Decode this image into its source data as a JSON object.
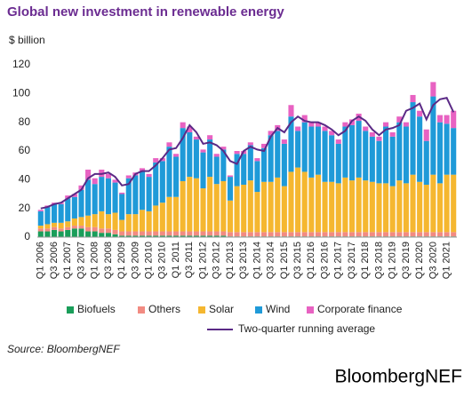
{
  "chart_data": {
    "type": "stacked-bar-line",
    "title": "Global new investment in renewable energy",
    "ylabel": "$ billion",
    "source": "Source: BloombergNEF",
    "brand": "BloombergNEF",
    "ylim": [
      0,
      120
    ],
    "yticks": [
      0,
      20,
      40,
      60,
      80,
      100,
      120
    ],
    "grid": false,
    "legend": "bottom",
    "categories": [
      "Q1 2006",
      null,
      "Q3 2006",
      null,
      "Q1 2007",
      null,
      "Q3 2007",
      null,
      "Q1 2008",
      null,
      "Q3 2008",
      null,
      "Q1 2009",
      null,
      "Q3 2009",
      null,
      "Q1 2010",
      null,
      "Q3 2010",
      null,
      "Q1 2011",
      null,
      "Q3 2011",
      null,
      "Q1 2012",
      null,
      "Q3 2012",
      null,
      "Q1 2013",
      null,
      "Q3 2013",
      null,
      "Q1 2014",
      null,
      "Q3 2014",
      null,
      "Q1 2015",
      null,
      "Q3 2015",
      null,
      "Q1 2016",
      null,
      "Q3 2016",
      null,
      "Q1 2017",
      null,
      "Q3 2017",
      null,
      "Q1 2018",
      null,
      "Q3 2018",
      null,
      "Q1 2019",
      null,
      "Q3 2019",
      null,
      "Q1 2020",
      null,
      "Q3 2020",
      null,
      "Q1 2021",
      null
    ],
    "series": [
      {
        "name": "Biofuels",
        "color": "#1a9e5a",
        "values": [
          4,
          4,
          5,
          4,
          5,
          6,
          6,
          4,
          4,
          3,
          3,
          2,
          1,
          1,
          1,
          1,
          1,
          1,
          1,
          1,
          1,
          1,
          1,
          1,
          1,
          1,
          1,
          1,
          0.5,
          0.5,
          0.5,
          0.5,
          0.5,
          0.5,
          0.5,
          0.5,
          0.5,
          0.5,
          0.5,
          0.5,
          0.5,
          0.5,
          0.5,
          0.5,
          0.5,
          0.5,
          0.5,
          0.5,
          0.5,
          0.5,
          0.5,
          0.5,
          0.5,
          0.5,
          0.5,
          0.5,
          0.5,
          0.5,
          0.5,
          0.5,
          0.5,
          0.5
        ]
      },
      {
        "name": "Others",
        "color": "#f28b82",
        "values": [
          2,
          2,
          2,
          2,
          2,
          2,
          2,
          3,
          3,
          3,
          3,
          3,
          3,
          3,
          3,
          3,
          3,
          3,
          3,
          3,
          3,
          3,
          3,
          3,
          3,
          3,
          3,
          3,
          3,
          3,
          3,
          3,
          3,
          3,
          3,
          3,
          3,
          3,
          3,
          3,
          3,
          3,
          3,
          3,
          3,
          3,
          3,
          3,
          3,
          3,
          3,
          3,
          3,
          3,
          3,
          3,
          3,
          3,
          3,
          3,
          3,
          3
        ]
      },
      {
        "name": "Solar",
        "color": "#f5b730",
        "values": [
          2,
          3,
          3,
          4,
          4,
          5,
          6,
          8,
          9,
          12,
          10,
          12,
          8,
          12,
          12,
          15,
          14,
          18,
          20,
          24,
          24,
          35,
          38,
          37,
          30,
          38,
          33,
          35,
          22,
          32,
          33,
          36,
          28,
          35,
          35,
          38,
          32,
          42,
          45,
          42,
          38,
          40,
          35,
          35,
          34,
          38,
          36,
          38,
          36,
          35,
          34,
          34,
          32,
          36,
          34,
          40,
          35,
          33,
          40,
          34,
          40,
          40
        ]
      },
      {
        "name": "Wind",
        "color": "#1f9ad8",
        "values": [
          10,
          12,
          13,
          13,
          16,
          15,
          19,
          25,
          21,
          24,
          25,
          21,
          18,
          25,
          27,
          27,
          24,
          30,
          29,
          35,
          28,
          37,
          31,
          27,
          25,
          26,
          19,
          22,
          16.5,
          22.5,
          21.5,
          24.5,
          21.5,
          23.5,
          32.5,
          32.5,
          29.5,
          38.5,
          25.5,
          34.5,
          35.5,
          33.5,
          35.5,
          32.5,
          27.5,
          35.5,
          38.5,
          39.5,
          34.5,
          31.5,
          29.5,
          39.5,
          34.5,
          40.5,
          39.5,
          50.5,
          45.5,
          30.5,
          54.5,
          42.5,
          35.5,
          32.5
        ]
      },
      {
        "name": "Corporate finance",
        "color": "#e862c2",
        "values": [
          1,
          1,
          1,
          1,
          2,
          2,
          3,
          7,
          4,
          5,
          3,
          2,
          1,
          2,
          2,
          2,
          2,
          3,
          2,
          3,
          2,
          4,
          4,
          2,
          2,
          3,
          2,
          2,
          1,
          2,
          2,
          2,
          2,
          3,
          3,
          4,
          3,
          8,
          3,
          5,
          3,
          3,
          3,
          3,
          3,
          3,
          4,
          5,
          3,
          3,
          3,
          3,
          3,
          4,
          3,
          5,
          4,
          8,
          10,
          5,
          6,
          12
        ]
      }
    ],
    "line": {
      "name": "Two-quarter running average",
      "color": "#5b2a86",
      "values": [
        20,
        21,
        23,
        24,
        27,
        30,
        33,
        41,
        44,
        44,
        45,
        42,
        36,
        37,
        44,
        46,
        46,
        50,
        55,
        61,
        62,
        69,
        78,
        73,
        65,
        66,
        64,
        60,
        53,
        51,
        60,
        63,
        61,
        60,
        70,
        76,
        73,
        80,
        84,
        81,
        80,
        80,
        78,
        75,
        71,
        74,
        81,
        84,
        81,
        75,
        71,
        75,
        76,
        78,
        88,
        90,
        93,
        82,
        92,
        96,
        97,
        87
      ]
    }
  }
}
